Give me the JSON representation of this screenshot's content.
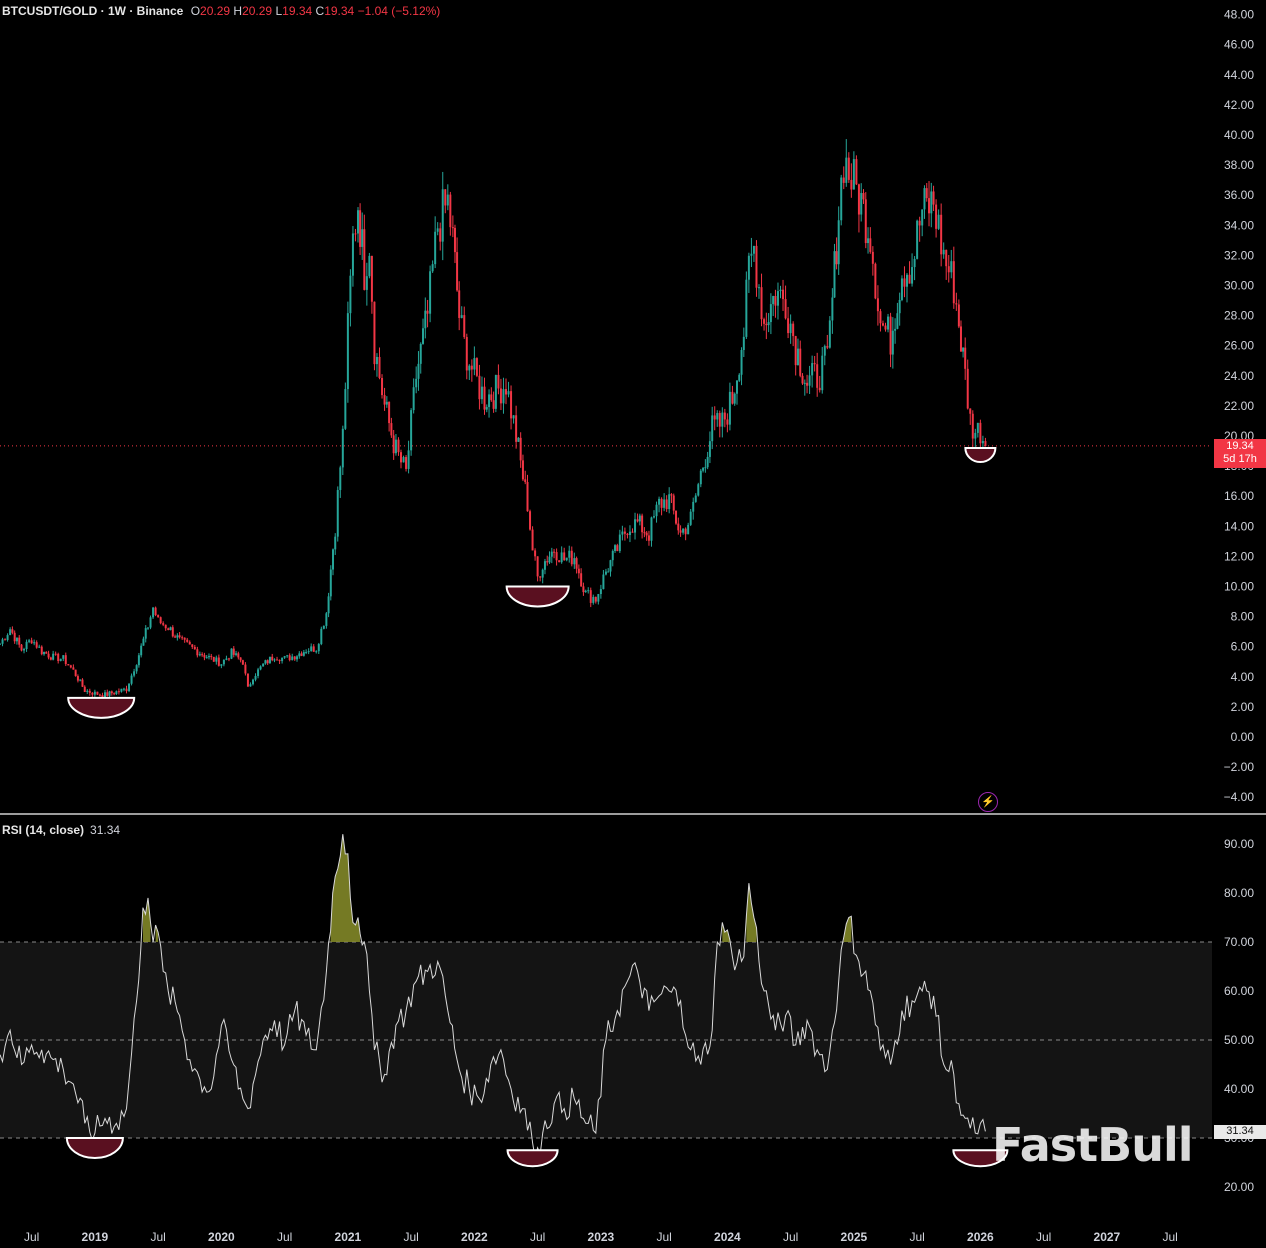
{
  "header": {
    "symbol": "BTCUSDT/GOLD · 1W · Binance",
    "open_label": "O",
    "open": "20.29",
    "high_label": "H",
    "high": "20.29",
    "low_label": "L",
    "low": "19.34",
    "close_label": "C",
    "close": "19.34",
    "change": "−1.04 (−5.12%)"
  },
  "price_tag": {
    "value": "19.34",
    "countdown": "5d 17h"
  },
  "rsi_tag": {
    "value": "31.34"
  },
  "rsi_legend": {
    "name": "RSI (14, close)",
    "value": "31.34"
  },
  "watermark": "FastBull",
  "icons": {
    "bolt": "lightning-icon"
  },
  "colors": {
    "up": "#26a69a",
    "down": "#f23645",
    "rsi_line": "#d9d9d9",
    "overbought_fill": "#8a8f2a",
    "marker": "#5a1020"
  },
  "chart_data": [
    {
      "type": "candlestick",
      "title": "BTCUSDT/GOLD · 1W · Binance",
      "y_ticks": [
        "48.00",
        "46.00",
        "44.00",
        "42.00",
        "40.00",
        "38.00",
        "36.00",
        "34.00",
        "32.00",
        "30.00",
        "28.00",
        "26.00",
        "24.00",
        "22.00",
        "20.00",
        "18.00",
        "16.00",
        "14.00",
        "12.00",
        "10.00",
        "8.00",
        "6.00",
        "4.00",
        "2.00",
        "0.00",
        "−2.00",
        "−4.00"
      ],
      "ylim": [
        -4,
        48
      ],
      "x_ticks": [
        "Jul",
        "2019",
        "Jul",
        "2020",
        "Jul",
        "2021",
        "Jul",
        "2022",
        "Jul",
        "2023",
        "Jul",
        "2024",
        "Jul",
        "2025",
        "Jul",
        "2026",
        "Jul",
        "2027",
        "Jul"
      ],
      "xlim": [
        2018.25,
        2027.7
      ],
      "close_series": [
        [
          2018.25,
          6.2
        ],
        [
          2018.33,
          7.2
        ],
        [
          2018.42,
          5.8
        ],
        [
          2018.5,
          6.5
        ],
        [
          2018.58,
          5.7
        ],
        [
          2018.67,
          5.3
        ],
        [
          2018.75,
          5.2
        ],
        [
          2018.83,
          4.4
        ],
        [
          2018.92,
          3.1
        ],
        [
          2019.0,
          2.9
        ],
        [
          2019.08,
          2.8
        ],
        [
          2019.17,
          3.0
        ],
        [
          2019.25,
          3.2
        ],
        [
          2019.33,
          5.0
        ],
        [
          2019.42,
          7.4
        ],
        [
          2019.46,
          8.6
        ],
        [
          2019.5,
          7.7
        ],
        [
          2019.58,
          7.3
        ],
        [
          2019.67,
          6.4
        ],
        [
          2019.75,
          6.0
        ],
        [
          2019.83,
          5.6
        ],
        [
          2019.92,
          5.2
        ],
        [
          2020.0,
          4.9
        ],
        [
          2020.08,
          5.6
        ],
        [
          2020.17,
          5.0
        ],
        [
          2020.21,
          3.2
        ],
        [
          2020.25,
          4.0
        ],
        [
          2020.33,
          4.8
        ],
        [
          2020.42,
          5.4
        ],
        [
          2020.5,
          5.2
        ],
        [
          2020.58,
          5.4
        ],
        [
          2020.67,
          5.8
        ],
        [
          2020.75,
          5.9
        ],
        [
          2020.83,
          8.3
        ],
        [
          2020.9,
          14.0
        ],
        [
          2020.96,
          20.0
        ],
        [
          2021.0,
          27.0
        ],
        [
          2021.04,
          33.0
        ],
        [
          2021.08,
          35.5
        ],
        [
          2021.13,
          31.0
        ],
        [
          2021.17,
          33.0
        ],
        [
          2021.21,
          26.0
        ],
        [
          2021.29,
          22.0
        ],
        [
          2021.38,
          19.0
        ],
        [
          2021.46,
          17.5
        ],
        [
          2021.54,
          24.0
        ],
        [
          2021.63,
          28.0
        ],
        [
          2021.71,
          34.0
        ],
        [
          2021.79,
          35.5
        ],
        [
          2021.83,
          33.0
        ],
        [
          2021.88,
          28.0
        ],
        [
          2021.92,
          26.0
        ],
        [
          2022.0,
          24.0
        ],
        [
          2022.08,
          22.5
        ],
        [
          2022.17,
          23.0
        ],
        [
          2022.25,
          23.5
        ],
        [
          2022.33,
          20.0
        ],
        [
          2022.42,
          15.5
        ],
        [
          2022.46,
          12.5
        ],
        [
          2022.5,
          10.6
        ],
        [
          2022.54,
          11.5
        ],
        [
          2022.63,
          12.5
        ],
        [
          2022.71,
          11.8
        ],
        [
          2022.79,
          12.0
        ],
        [
          2022.88,
          9.5
        ],
        [
          2022.96,
          9.2
        ],
        [
          2023.04,
          11.0
        ],
        [
          2023.13,
          12.5
        ],
        [
          2023.21,
          14.0
        ],
        [
          2023.29,
          14.2
        ],
        [
          2023.38,
          13.5
        ],
        [
          2023.46,
          15.5
        ],
        [
          2023.54,
          15.8
        ],
        [
          2023.63,
          13.5
        ],
        [
          2023.71,
          14.5
        ],
        [
          2023.79,
          17.5
        ],
        [
          2023.88,
          20.5
        ],
        [
          2023.96,
          20.8
        ],
        [
          2024.04,
          22.5
        ],
        [
          2024.13,
          27.0
        ],
        [
          2024.17,
          31.0
        ],
        [
          2024.21,
          32.5
        ],
        [
          2024.29,
          27.5
        ],
        [
          2024.38,
          29.5
        ],
        [
          2024.46,
          29.0
        ],
        [
          2024.54,
          26.0
        ],
        [
          2024.63,
          23.5
        ],
        [
          2024.71,
          24.0
        ],
        [
          2024.79,
          25.0
        ],
        [
          2024.83,
          29.0
        ],
        [
          2024.88,
          35.0
        ],
        [
          2024.92,
          38.5
        ],
        [
          2024.96,
          37.5
        ],
        [
          2025.04,
          36.0
        ],
        [
          2025.13,
          33.5
        ],
        [
          2025.21,
          27.5
        ],
        [
          2025.29,
          26.5
        ],
        [
          2025.38,
          31.0
        ],
        [
          2025.46,
          31.5
        ],
        [
          2025.54,
          35.0
        ],
        [
          2025.63,
          35.5
        ],
        [
          2025.71,
          32.0
        ],
        [
          2025.79,
          30.0
        ],
        [
          2025.83,
          27.5
        ],
        [
          2025.88,
          24.0
        ],
        [
          2025.92,
          21.0
        ],
        [
          2025.96,
          20.3
        ],
        [
          2026.0,
          20.4
        ],
        [
          2026.04,
          19.34
        ]
      ]
    },
    {
      "type": "line",
      "title": "RSI (14, close)",
      "y_ticks": [
        "90.00",
        "80.00",
        "70.00",
        "60.00",
        "50.00",
        "40.00",
        "30.00",
        "20.00"
      ],
      "ylim": [
        17,
        95
      ],
      "bands": [
        30,
        50,
        70
      ],
      "x": [
        2018.25,
        2018.33,
        2018.42,
        2018.5,
        2018.58,
        2018.67,
        2018.75,
        2018.83,
        2018.92,
        2019.0,
        2019.08,
        2019.17,
        2019.25,
        2019.33,
        2019.38,
        2019.42,
        2019.46,
        2019.5,
        2019.54,
        2019.58,
        2019.67,
        2019.75,
        2019.83,
        2019.92,
        2020.0,
        2020.08,
        2020.17,
        2020.21,
        2020.25,
        2020.33,
        2020.42,
        2020.5,
        2020.58,
        2020.67,
        2020.75,
        2020.83,
        2020.88,
        2020.92,
        2020.96,
        2021.0,
        2021.04,
        2021.08,
        2021.13,
        2021.17,
        2021.21,
        2021.29,
        2021.38,
        2021.46,
        2021.54,
        2021.63,
        2021.71,
        2021.79,
        2021.88,
        2021.96,
        2022.04,
        2022.13,
        2022.21,
        2022.29,
        2022.38,
        2022.46,
        2022.5,
        2022.54,
        2022.63,
        2022.71,
        2022.79,
        2022.88,
        2022.96,
        2023.04,
        2023.13,
        2023.21,
        2023.29,
        2023.38,
        2023.46,
        2023.54,
        2023.63,
        2023.71,
        2023.79,
        2023.88,
        2023.92,
        2023.96,
        2024.04,
        2024.13,
        2024.17,
        2024.21,
        2024.29,
        2024.38,
        2024.46,
        2024.54,
        2024.63,
        2024.71,
        2024.79,
        2024.83,
        2024.88,
        2024.92,
        2024.96,
        2025.04,
        2025.13,
        2025.21,
        2025.29,
        2025.38,
        2025.46,
        2025.54,
        2025.63,
        2025.71,
        2025.79,
        2025.83,
        2025.88,
        2025.92,
        2025.96,
        2026.0,
        2026.04
      ],
      "values": [
        47,
        52,
        45,
        49,
        48,
        46,
        44,
        41,
        33,
        31,
        34,
        33,
        36,
        58,
        77,
        79,
        70,
        72,
        64,
        60,
        55,
        46,
        42,
        40,
        53,
        46,
        38,
        36,
        41,
        50,
        54,
        49,
        56,
        51,
        48,
        64,
        80,
        85,
        92,
        88,
        74,
        75,
        70,
        60,
        48,
        43,
        53,
        56,
        62,
        64,
        66,
        56,
        44,
        40,
        38,
        45,
        48,
        40,
        36,
        29,
        28,
        31,
        37,
        36,
        38,
        33,
        31,
        50,
        56,
        62,
        64,
        56,
        59,
        60,
        58,
        48,
        45,
        52,
        70,
        74,
        67,
        67,
        82,
        75,
        60,
        52,
        55,
        49,
        54,
        48,
        44,
        52,
        62,
        71,
        75,
        66,
        60,
        48,
        45,
        56,
        58,
        60,
        59,
        45,
        43,
        37,
        34,
        32,
        31,
        33,
        31.34
      ]
    }
  ]
}
